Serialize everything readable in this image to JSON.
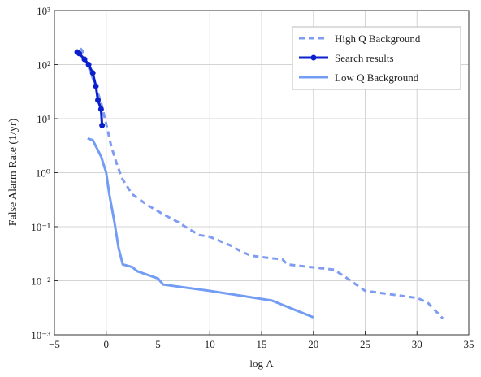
{
  "chart_data": {
    "type": "line",
    "xlabel": "log Λ",
    "ylabel": "False Alarm Rate (1/yr)",
    "xlim": [
      -5,
      35
    ],
    "ylim": [
      0.001,
      1000
    ],
    "log_y": true,
    "grid": true,
    "legend": "upper right",
    "xticks": [
      {
        "value": -5,
        "label": "−5"
      },
      0,
      5,
      10,
      15,
      20,
      25,
      30,
      35
    ],
    "yticks": [
      {
        "value": 0.001,
        "label": "10⁻³"
      },
      {
        "value": 0.01,
        "label": "10⁻²"
      },
      {
        "value": 0.1,
        "label": "10⁻¹"
      },
      {
        "value": 1,
        "label": "10⁰"
      },
      {
        "value": 10,
        "label": "10¹"
      },
      {
        "value": 100,
        "label": "10²"
      },
      {
        "value": 1000,
        "label": "10³"
      }
    ],
    "series": [
      {
        "name": "High Q Background",
        "color": "#7f9cf2",
        "style": "dashed",
        "x": [
          -2.5,
          -2.3,
          -1.8,
          -1.2,
          -0.5,
          0,
          0.5,
          1,
          1.5,
          2.5,
          4,
          5.5,
          7,
          8,
          9,
          10,
          12,
          13,
          14,
          16,
          17,
          17.5,
          22,
          23,
          25,
          30,
          31,
          32.5
        ],
        "values": [
          200,
          180,
          100,
          50,
          20,
          8,
          3,
          1.5,
          0.8,
          0.4,
          0.25,
          0.17,
          0.12,
          0.09,
          0.07,
          0.065,
          0.045,
          0.035,
          0.029,
          0.026,
          0.025,
          0.02,
          0.016,
          0.012,
          0.0065,
          0.0048,
          0.004,
          0.002
        ]
      },
      {
        "name": "Search results",
        "color": "#0b1fcc",
        "style": "solid",
        "marker": true,
        "x": [
          -2.8,
          -2.6,
          -2.1,
          -1.7,
          -1.3,
          -1.0,
          -0.8,
          -0.5,
          -0.4
        ],
        "values": [
          170,
          160,
          125,
          100,
          70,
          40,
          22,
          15,
          7.5
        ]
      },
      {
        "name": "Low Q Background",
        "color": "#739cf5",
        "style": "solid",
        "x": [
          -1.8,
          -1.3,
          -0.5,
          0,
          0.3,
          0.8,
          1.2,
          1.6,
          2.5,
          3,
          5,
          5.5,
          10,
          16,
          20
        ],
        "values": [
          4.3,
          4,
          2,
          1.0,
          0.4,
          0.12,
          0.04,
          0.02,
          0.018,
          0.015,
          0.011,
          0.0085,
          0.0065,
          0.0043,
          0.0021
        ]
      }
    ]
  }
}
